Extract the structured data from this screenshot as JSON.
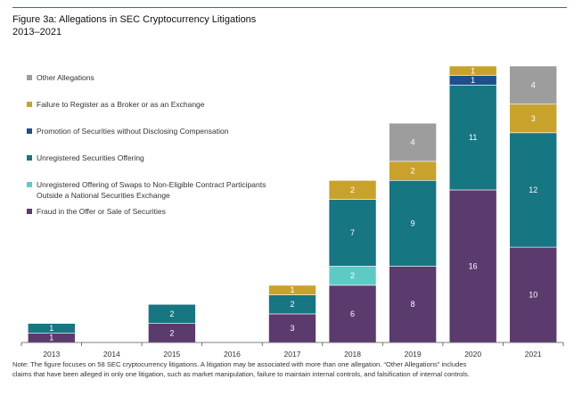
{
  "figure_title": "Figure 3a: Allegations in SEC Cryptocurrency Litigations",
  "figure_subtitle": "2013–2021",
  "note_line1": "Note: The figure focuses on 58 SEC cryptocurrency litigations. A litigation may be associated with more than one allegation. “Other Allegations” includes",
  "note_line2": "claims that have been alleged in only one litigation, such as market manipulation, failure to maintain internal controls, and falsification of internal controls.",
  "chart_data": {
    "type": "bar",
    "stacked": true,
    "title": "Allegations in SEC Cryptocurrency Litigations",
    "xlabel": "",
    "ylabel": "",
    "ylim": [
      0,
      29
    ],
    "categories": [
      "2013",
      "2014",
      "2015",
      "2016",
      "2017",
      "2018",
      "2019",
      "2020",
      "2021"
    ],
    "series": [
      {
        "name": "Fraud in the Offer or Sale of Securities",
        "color": "#5b3a6e",
        "values": [
          1,
          0,
          2,
          0,
          3,
          6,
          8,
          16,
          10
        ]
      },
      {
        "name": "Unregistered Offering of Swaps to Non-Eligible Contract Participants Outside a National Securities Exchange",
        "legend_lines": [
          "Unregistered Offering of Swaps to Non-Eligible Contract Participants",
          "Outside a National Securities Exchange"
        ],
        "color": "#5ecac5",
        "values": [
          0,
          0,
          0,
          0,
          0,
          2,
          0,
          0,
          0
        ]
      },
      {
        "name": "Unregistered Securities Offering",
        "color": "#167682",
        "values": [
          1,
          0,
          2,
          0,
          2,
          7,
          9,
          11,
          12
        ]
      },
      {
        "name": "Promotion of Securities without Disclosing Compensation",
        "color": "#1f4e8c",
        "values": [
          0,
          0,
          0,
          0,
          0,
          0,
          0,
          1,
          0
        ]
      },
      {
        "name": "Failure to Register as a Broker or as an Exchange",
        "color": "#c9a22c",
        "values": [
          0,
          0,
          0,
          0,
          1,
          2,
          2,
          1,
          3
        ]
      },
      {
        "name": "Other Allegations",
        "color": "#9d9d9d",
        "values": [
          0,
          0,
          0,
          0,
          0,
          0,
          4,
          0,
          4
        ]
      }
    ]
  }
}
